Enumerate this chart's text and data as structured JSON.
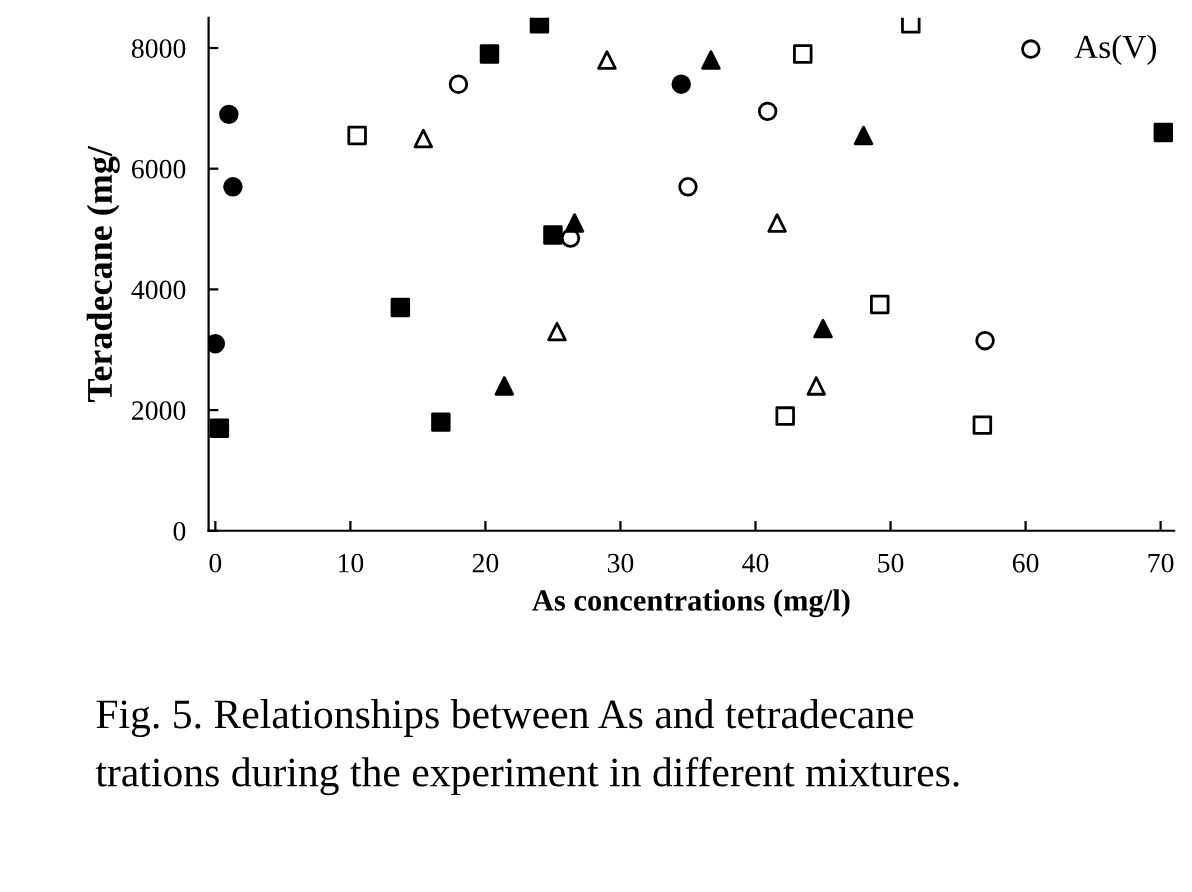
{
  "chart_data": {
    "type": "scatter",
    "xlabel": "As concentrations (mg/l)",
    "ylabel": "Teradecane (mg/",
    "annotations": [
      "Fig. 5. Relationships between As and tetradecane",
      "trations during the experiment in different mixtures."
    ],
    "xlim": [
      -0.5,
      71
    ],
    "ylim": [
      0,
      8500
    ],
    "xticks": [
      0,
      10,
      20,
      30,
      40,
      50,
      60,
      70
    ],
    "yticks": [
      0,
      2000,
      4000,
      6000,
      8000
    ],
    "grid": false,
    "legend": "top right",
    "series": [
      {
        "color": "#000000",
        "marker": "circle",
        "x": [
          0,
          1,
          1.3,
          34.5
        ],
        "values": [
          3100,
          6900,
          5700,
          7400
        ]
      },
      {
        "name": "As(V)",
        "color": "#000000",
        "marker": "circle",
        "x": [
          18,
          26.3,
          35,
          40.9,
          57
        ],
        "values": [
          7400,
          4850,
          5700,
          6950,
          3150
        ]
      },
      {
        "color": "#000000",
        "marker": "square",
        "x": [
          0.3,
          13.7,
          16.7,
          20.3,
          24,
          25,
          70.2
        ],
        "values": [
          1700,
          3700,
          1800,
          7900,
          8400,
          4900,
          6600
        ]
      },
      {
        "color": "#000000",
        "marker": "square",
        "x": [
          10.5,
          42.2,
          43.5,
          49.2,
          51.5,
          56.8
        ],
        "values": [
          6550,
          1900,
          7900,
          3750,
          8400,
          1750
        ]
      },
      {
        "color": "#000000",
        "marker": "triangle",
        "x": [
          21.4,
          26.6,
          36.7,
          45,
          48
        ],
        "values": [
          2400,
          5100,
          7800,
          3350,
          6550
        ]
      },
      {
        "color": "#000000",
        "marker": "triangle",
        "x": [
          15.4,
          25.3,
          29,
          41.6,
          44.5
        ],
        "values": [
          6500,
          3300,
          7800,
          5100,
          2400
        ]
      }
    ]
  }
}
